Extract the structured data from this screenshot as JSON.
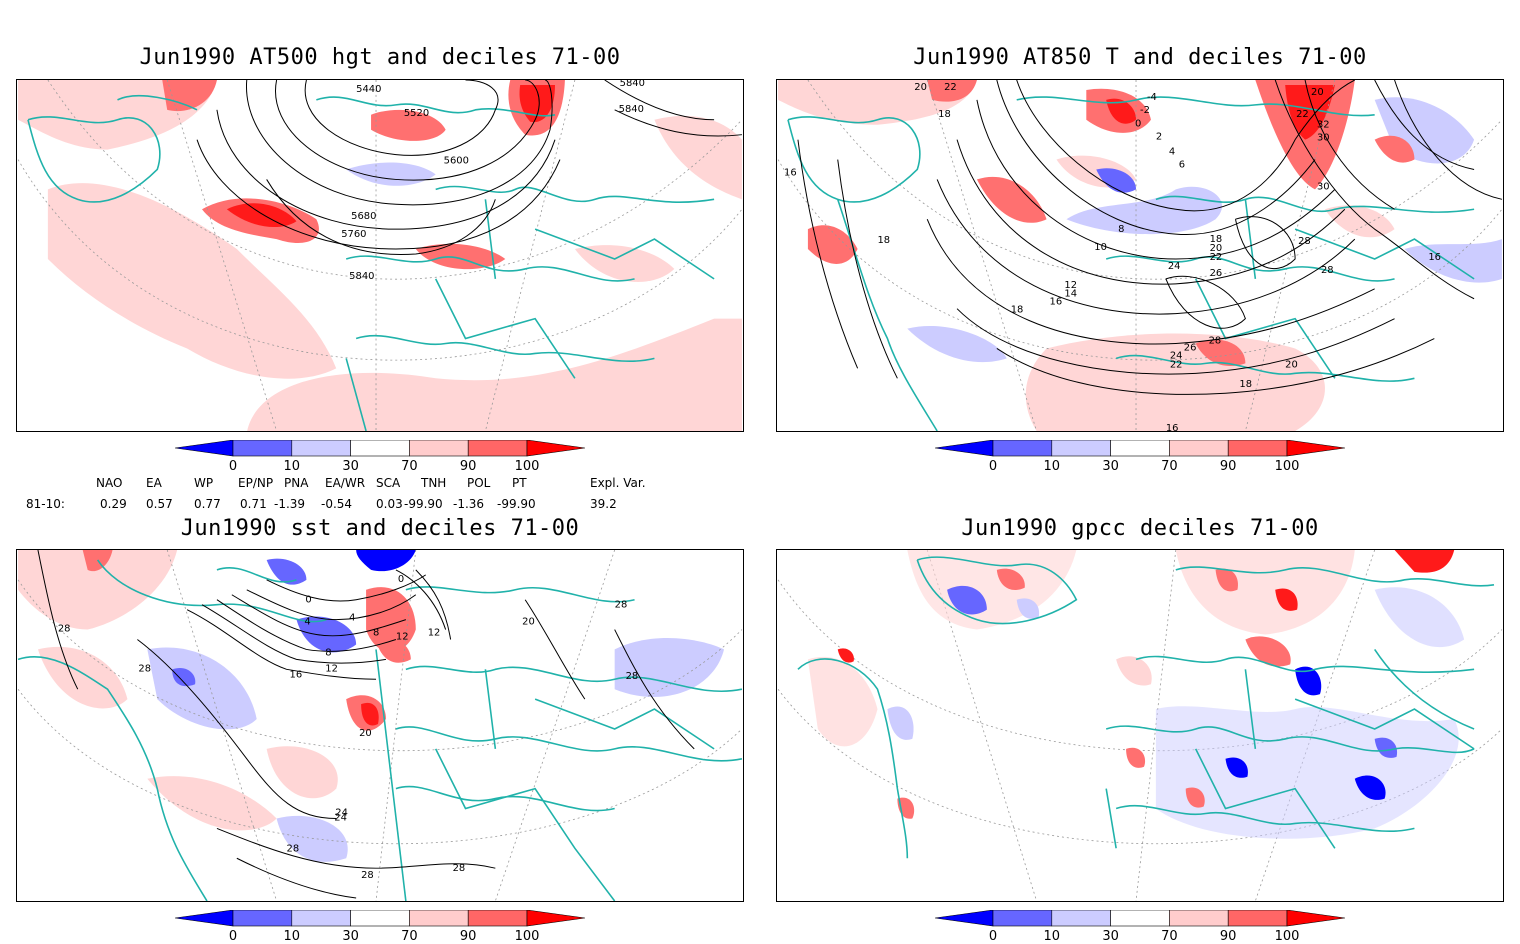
{
  "panels": [
    {
      "id": "hgt",
      "title": "Jun1990 AT500 hgt and deciles 71-00",
      "contour_labels": [
        "5440",
        "5520",
        "5600",
        "5680",
        "5760",
        "5840",
        "5840",
        "5840"
      ]
    },
    {
      "id": "t850",
      "title": "Jun1990 AT850 T and deciles 71-00",
      "contour_labels": [
        "20",
        "22",
        "18",
        "16",
        "18",
        "-4",
        "-2",
        "0",
        "2",
        "4",
        "6",
        "8",
        "10",
        "12",
        "14",
        "16",
        "18",
        "18",
        "20",
        "22",
        "24",
        "26",
        "28",
        "28",
        "26",
        "24",
        "22",
        "20",
        "18",
        "16",
        "20",
        "22",
        "30",
        "32",
        "30",
        "28",
        "16"
      ]
    },
    {
      "id": "sst",
      "title": "Jun1990 sst and deciles 71-00",
      "contour_labels": [
        "28",
        "28",
        "24",
        "20",
        "16",
        "12",
        "8",
        "4",
        "0",
        "0",
        "4",
        "8",
        "12",
        "12",
        "28",
        "28",
        "20",
        "24",
        "28",
        "28",
        "28"
      ]
    },
    {
      "id": "gpcc",
      "title": "Jun1990 gpcc deciles 71-00",
      "contour_labels": []
    }
  ],
  "colorbar": {
    "ticks": [
      "0",
      "10",
      "30",
      "70",
      "90",
      "100"
    ],
    "colors": [
      "#0000ff",
      "#6666ff",
      "#ccccff",
      "#ffffff",
      "#ffcccc",
      "#ff6666",
      "#ff0000"
    ]
  },
  "indices": {
    "headers": [
      "NAO",
      "EA",
      "WP",
      "EP/NP",
      "PNA",
      "EA/WR",
      "SCA",
      "TNH",
      "POL",
      "PT",
      "Expl. Var."
    ],
    "row_label": "81-10:",
    "values": [
      "0.29",
      "0.57",
      "0.77",
      "0.71",
      "-1.39",
      "-0.54",
      "0.03",
      "-99.90",
      "-1.36",
      "-99.90",
      "39.2"
    ]
  },
  "colors": {
    "coast": "#20b2aa",
    "grid": "#999999",
    "contour": "#000000"
  }
}
